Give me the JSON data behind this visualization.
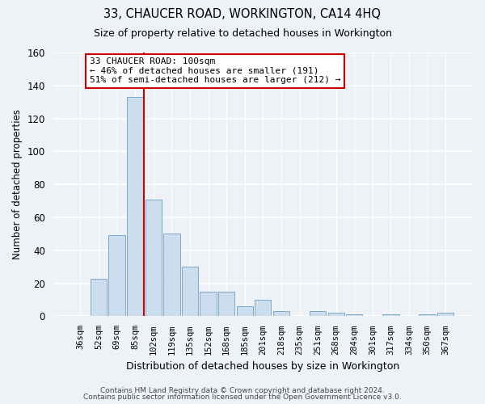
{
  "title": "33, CHAUCER ROAD, WORKINGTON, CA14 4HQ",
  "subtitle": "Size of property relative to detached houses in Workington",
  "xlabel": "Distribution of detached houses by size in Workington",
  "ylabel": "Number of detached properties",
  "bar_color": "#ccdded",
  "bar_edge_color": "#7aaac8",
  "categories": [
    "36sqm",
    "52sqm",
    "69sqm",
    "85sqm",
    "102sqm",
    "119sqm",
    "135sqm",
    "152sqm",
    "168sqm",
    "185sqm",
    "201sqm",
    "218sqm",
    "235sqm",
    "251sqm",
    "268sqm",
    "284sqm",
    "301sqm",
    "317sqm",
    "334sqm",
    "350sqm",
    "367sqm"
  ],
  "values": [
    0,
    23,
    49,
    133,
    71,
    50,
    30,
    15,
    15,
    6,
    10,
    3,
    0,
    3,
    2,
    1,
    0,
    1,
    0,
    1,
    2
  ],
  "ylim": [
    0,
    160
  ],
  "yticks": [
    0,
    20,
    40,
    60,
    80,
    100,
    120,
    140,
    160
  ],
  "vline_index": 4,
  "vline_color": "#cc0000",
  "annotation_title": "33 CHAUCER ROAD: 100sqm",
  "annotation_line1": "← 46% of detached houses are smaller (191)",
  "annotation_line2": "51% of semi-detached houses are larger (212) →",
  "annotation_box_color": "#ffffff",
  "annotation_box_edge": "#cc0000",
  "footer1": "Contains HM Land Registry data © Crown copyright and database right 2024.",
  "footer2": "Contains public sector information licensed under the Open Government Licence v3.0.",
  "background_color": "#eef2f7",
  "grid_color": "#d8e0ea",
  "fig_width": 6.0,
  "fig_height": 5.0
}
